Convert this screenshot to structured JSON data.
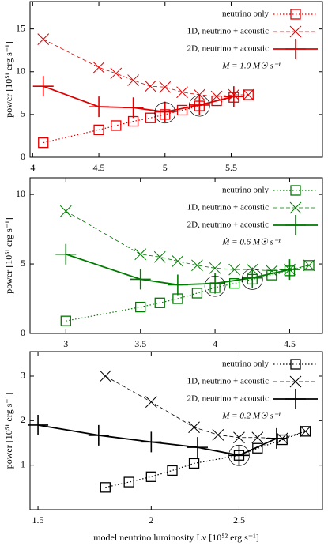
{
  "chart_data": [
    {
      "type": "line",
      "ylabel": "power [10⁵¹ erg s⁻¹]",
      "annotation": "Ṁ = 1.0 M☉ s⁻¹",
      "color": "#e00000",
      "xlim": [
        3.98,
        6.19
      ],
      "xticks": [
        4,
        4.5,
        5,
        5.5
      ],
      "ylim": [
        0,
        18.2
      ],
      "yticks": [
        0,
        5,
        10,
        15
      ],
      "legend": "upper right",
      "series": [
        {
          "name": "neutrino only",
          "style": "dotted",
          "marker": "square",
          "x": [
            4.08,
            4.5,
            4.63,
            4.76,
            4.89,
            5.0,
            5.13,
            5.26,
            5.39,
            5.52,
            5.63
          ],
          "values": [
            1.7,
            3.2,
            3.7,
            4.2,
            4.6,
            5.0,
            5.5,
            6.0,
            6.6,
            7.0,
            7.3
          ]
        },
        {
          "name": "1D, neutrino + acoustic",
          "style": "dashed",
          "marker": "x",
          "x": [
            4.08,
            4.5,
            4.63,
            4.76,
            4.89,
            5.0,
            5.13,
            5.26,
            5.39,
            5.52,
            5.63
          ],
          "values": [
            13.8,
            10.5,
            9.8,
            9.0,
            8.3,
            8.2,
            7.6,
            7.3,
            7.1,
            7.3,
            7.3
          ]
        },
        {
          "name": "2D, neutrino + acoustic",
          "style": "solid",
          "marker": "plus",
          "x": [
            4.08,
            4.5,
            4.76,
            5.0,
            5.26,
            5.52
          ],
          "values": [
            8.3,
            5.9,
            5.8,
            5.3,
            6.1,
            7.1
          ]
        }
      ],
      "highlights": [
        {
          "x": 5.0,
          "y": 5.2
        },
        {
          "x": 5.26,
          "y": 6.0
        }
      ]
    },
    {
      "type": "line",
      "ylabel": "power [10⁵¹ erg s⁻¹]",
      "annotation": "Ṁ = 0.6 M☉ s⁻¹",
      "color": "#007a00",
      "xlim": [
        2.76,
        4.72
      ],
      "xticks": [
        3,
        3.5,
        4,
        4.5
      ],
      "ylim": [
        0,
        11.2
      ],
      "yticks": [
        0,
        5,
        10
      ],
      "legend": "upper right",
      "series": [
        {
          "name": "neutrino only",
          "style": "dotted",
          "marker": "square",
          "x": [
            3,
            3.5,
            3.63,
            3.75,
            3.88,
            4.0,
            4.13,
            4.25,
            4.38,
            4.5,
            4.63
          ],
          "values": [
            0.9,
            1.9,
            2.2,
            2.5,
            2.9,
            3.3,
            3.6,
            3.9,
            4.2,
            4.5,
            4.9
          ]
        },
        {
          "name": "1D, neutrino + acoustic",
          "style": "dashed",
          "marker": "x",
          "x": [
            3,
            3.5,
            3.63,
            3.75,
            3.88,
            4.0,
            4.13,
            4.25,
            4.38,
            4.5,
            4.63
          ],
          "values": [
            8.8,
            5.7,
            5.5,
            5.2,
            4.9,
            4.7,
            4.6,
            4.6,
            4.5,
            4.6,
            4.9
          ]
        },
        {
          "name": "2D, neutrino + acoustic",
          "style": "solid",
          "marker": "plus",
          "x": [
            3,
            3.5,
            3.75,
            4.0,
            4.25,
            4.5
          ],
          "values": [
            5.7,
            3.9,
            3.5,
            3.6,
            4.0,
            4.6
          ]
        }
      ],
      "highlights": [
        {
          "x": 4.0,
          "y": 3.4
        },
        {
          "x": 4.25,
          "y": 3.9
        }
      ]
    },
    {
      "type": "line",
      "ylabel": "power [10⁵¹ erg s⁻¹]",
      "xlabel": "model neutrino luminosity Lν [10⁵² erg s⁻¹]",
      "annotation": "Ṁ = 0.2 M☉ s⁻¹",
      "color": "#000000",
      "xscale": "log",
      "xlim": [
        1.47,
        3.09
      ],
      "xticks": [
        1.5,
        2,
        2.5
      ],
      "ylim": [
        0,
        3.55
      ],
      "yticks": [
        1,
        2,
        3
      ],
      "legend": "upper right",
      "series": [
        {
          "name": "neutrino only",
          "style": "dotted",
          "marker": "square",
          "x": [
            1.78,
            1.89,
            2.0,
            2.11,
            2.23,
            2.5,
            2.62,
            2.79,
            2.96
          ],
          "values": [
            0.5,
            0.62,
            0.74,
            0.88,
            1.04,
            1.22,
            1.38,
            1.57,
            1.76
          ]
        },
        {
          "name": "1D, neutrino + acoustic",
          "style": "dashed",
          "marker": "x",
          "x": [
            1.78,
            2.0,
            2.23,
            2.37,
            2.5,
            2.62,
            2.79,
            2.96
          ],
          "values": [
            3.0,
            2.42,
            1.85,
            1.68,
            1.62,
            1.62,
            1.6,
            1.76
          ]
        },
        {
          "name": "2D, neutrino + acoustic",
          "style": "solid",
          "marker": "plus",
          "x": [
            1.5,
            1.75,
            2.0,
            2.25,
            2.5,
            2.75
          ],
          "values": [
            1.9,
            1.67,
            1.52,
            1.4,
            1.22,
            1.6
          ]
        }
      ],
      "highlights": [
        {
          "x": 2.5,
          "y": 1.22
        }
      ]
    }
  ]
}
